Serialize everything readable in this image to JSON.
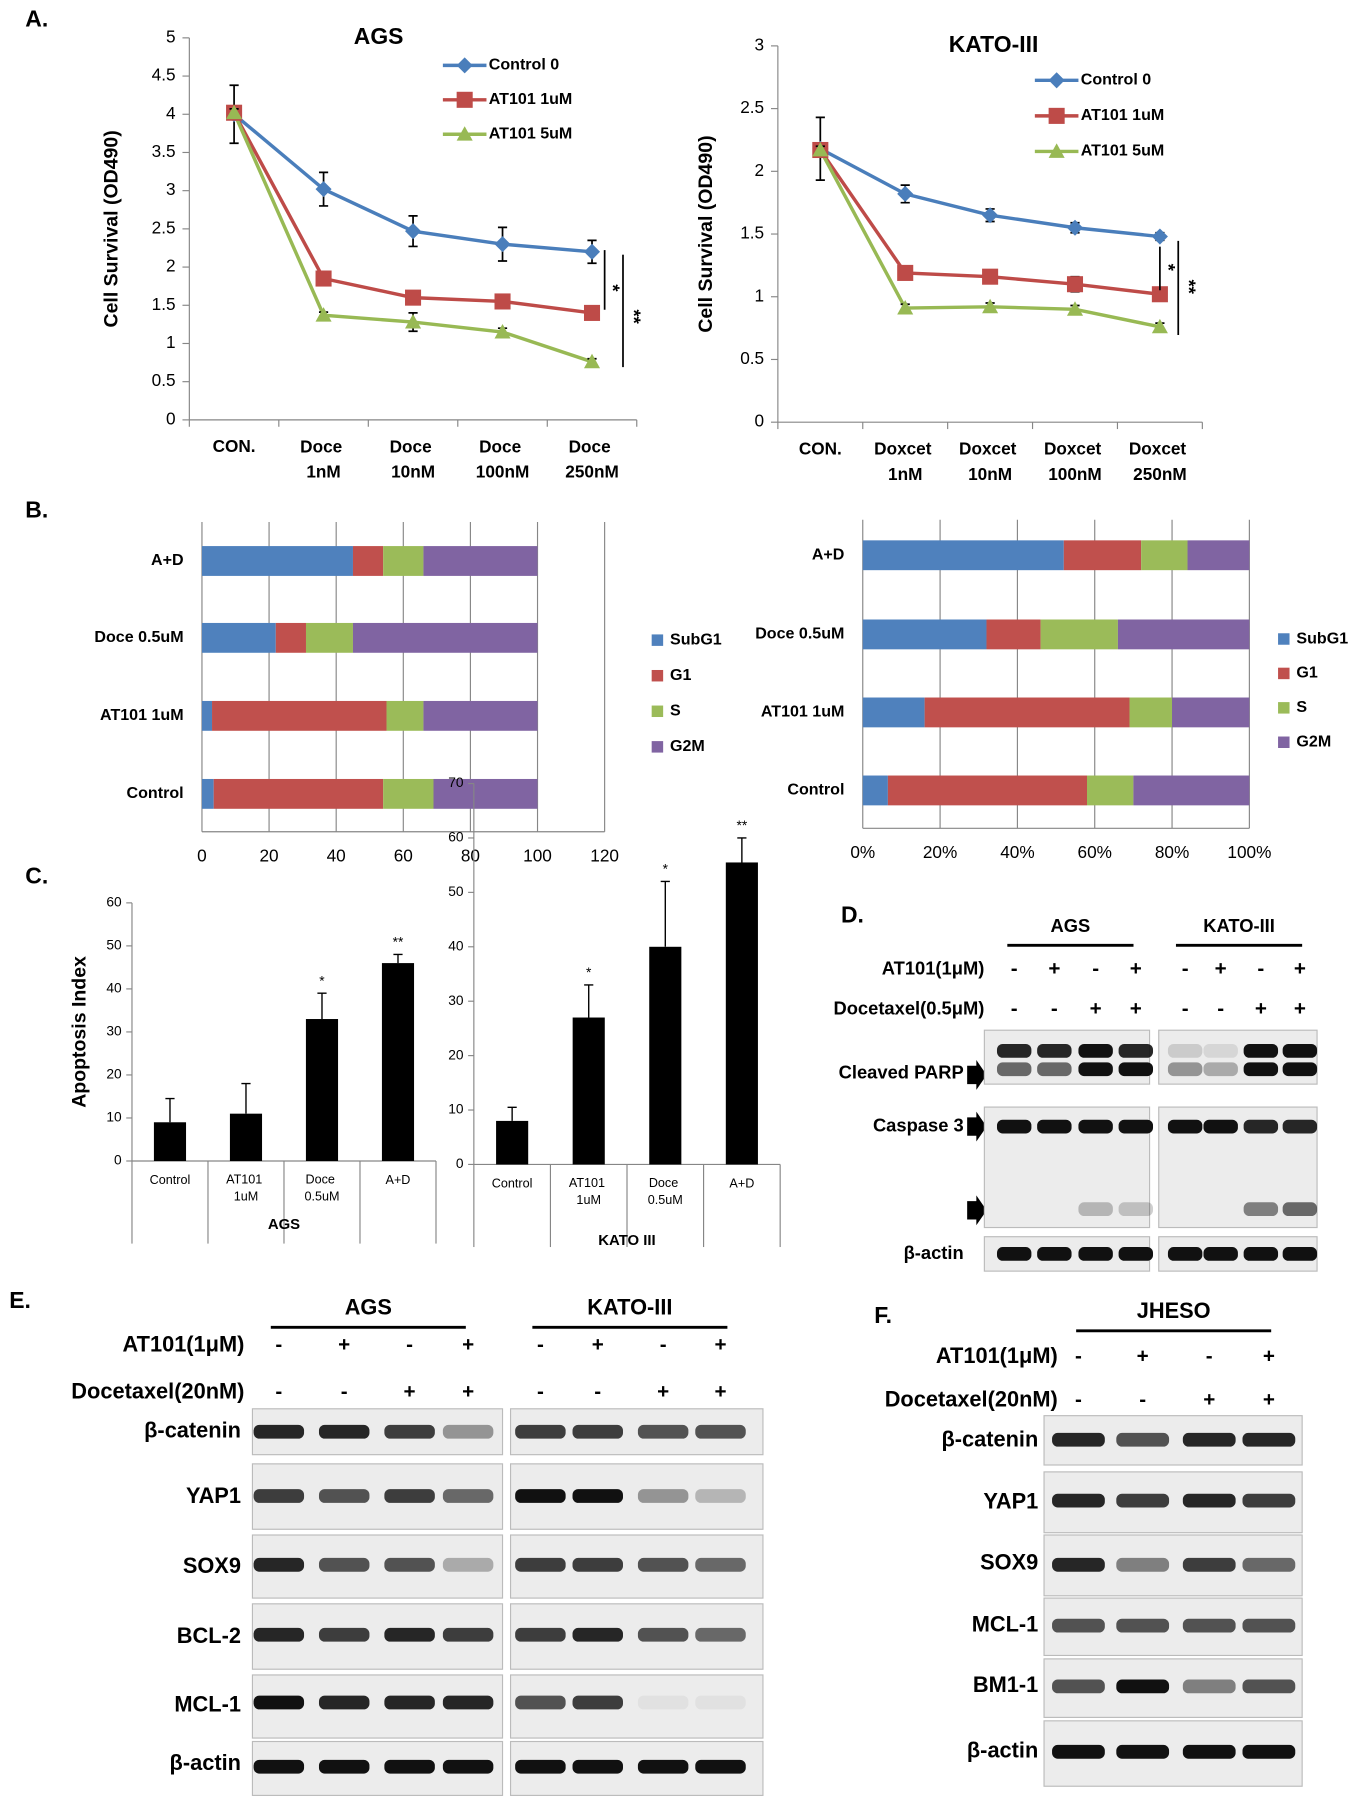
{
  "panel_labels": [
    "A.",
    "B.",
    "C.",
    "D.",
    "E.",
    "F."
  ],
  "chart_data": [
    {
      "type": "line",
      "title": "AGS",
      "y_label": "Cell Survival (OD490)",
      "categories": [
        "CON.",
        "Doce 1nM",
        "Doce 10nM",
        "Doce 100nM",
        "Doce 250nM"
      ],
      "ylim": [
        0,
        5
      ],
      "yticks": [
        0,
        0.5,
        1,
        1.5,
        2,
        2.5,
        3,
        3.5,
        4,
        4.5,
        5
      ],
      "series": [
        {
          "name": "Control 0",
          "color": "#4a7ebb",
          "marker": "diamond",
          "values": [
            4.0,
            3.02,
            2.47,
            2.3,
            2.2
          ],
          "errors": [
            0.38,
            0.22,
            0.2,
            0.22,
            0.15
          ]
        },
        {
          "name": "AT101 1uM",
          "color": "#be4b48",
          "marker": "square",
          "values": [
            4.02,
            1.85,
            1.6,
            1.55,
            1.4
          ],
          "errors": [
            0.05,
            0.05,
            0.06,
            0.05,
            0.05
          ]
        },
        {
          "name": "AT101 5uM",
          "color": "#98b954",
          "marker": "triangle",
          "values": [
            4.02,
            1.37,
            1.28,
            1.15,
            0.76
          ],
          "errors": [
            0.05,
            0.04,
            0.12,
            0.05,
            0.04
          ]
        }
      ],
      "annotations": [
        "*",
        "**"
      ]
    },
    {
      "type": "line",
      "title": "KATO-III",
      "y_label": "Cell Survival (OD490)",
      "categories": [
        "CON.",
        "Doxcet 1nM",
        "Doxcet 10nM",
        "Doxcet 100nM",
        "Doxcet 250nM"
      ],
      "ylim": [
        0,
        3
      ],
      "yticks": [
        0,
        0.5,
        1,
        1.5,
        2,
        2.5,
        3
      ],
      "series": [
        {
          "name": "Control 0",
          "color": "#4a7ebb",
          "marker": "diamond",
          "values": [
            2.18,
            1.82,
            1.65,
            1.55,
            1.48
          ],
          "errors": [
            0.25,
            0.07,
            0.05,
            0.04,
            0.03
          ]
        },
        {
          "name": "AT101 1uM",
          "color": "#be4b48",
          "marker": "square",
          "values": [
            2.17,
            1.19,
            1.16,
            1.1,
            1.02
          ],
          "errors": [
            0.03,
            0.03,
            0.05,
            0.06,
            0.03
          ]
        },
        {
          "name": "AT101 5uM",
          "color": "#98b954",
          "marker": "triangle",
          "values": [
            2.17,
            0.91,
            0.92,
            0.9,
            0.76
          ],
          "errors": [
            0.03,
            0.03,
            0.03,
            0.03,
            0.03
          ]
        }
      ],
      "annotations": [
        "*",
        "**"
      ]
    },
    {
      "type": "bar",
      "orientation": "horizontal",
      "stacked": true,
      "grid": true,
      "categories": [
        "A+D",
        "Doce 0.5uM",
        "AT101 1uM",
        "Control"
      ],
      "xlim": [
        0,
        120
      ],
      "xticks": [
        0,
        20,
        40,
        60,
        80,
        100,
        120
      ],
      "series": [
        {
          "name": "SubG1",
          "color": "#4f81bd",
          "values": [
            45,
            22,
            3,
            3.5
          ]
        },
        {
          "name": "G1",
          "color": "#c0504d",
          "values": [
            9,
            9,
            52,
            50.5
          ]
        },
        {
          "name": "S",
          "color": "#9bbb59",
          "values": [
            12,
            14,
            11,
            15
          ]
        },
        {
          "name": "G2M",
          "color": "#8064a2",
          "values": [
            34,
            55,
            34,
            31
          ]
        }
      ]
    },
    {
      "type": "bar",
      "orientation": "horizontal",
      "stacked": true,
      "grid": true,
      "categories": [
        "A+D",
        "Doce 0.5uM",
        "AT101 1uM",
        "Control"
      ],
      "xlim": [
        0,
        100
      ],
      "xticks": [
        {
          "value": 0,
          "label": "0%"
        },
        {
          "value": 20,
          "label": "20%"
        },
        {
          "value": 40,
          "label": "40%"
        },
        {
          "value": 60,
          "label": "60%"
        },
        {
          "value": 80,
          "label": "80%"
        },
        {
          "value": 100,
          "label": "100%"
        }
      ],
      "series": [
        {
          "name": "SubG1",
          "color": "#4f81bd",
          "values": [
            52,
            32,
            16,
            6.5
          ]
        },
        {
          "name": "G1",
          "color": "#c0504d",
          "values": [
            20,
            14,
            53,
            51.5
          ]
        },
        {
          "name": "S",
          "color": "#9bbb59",
          "values": [
            12,
            20,
            11,
            12
          ]
        },
        {
          "name": "G2M",
          "color": "#8064a2",
          "values": [
            16,
            34,
            20,
            30
          ]
        }
      ]
    },
    {
      "type": "bar",
      "y_label": "Apoptosis Index",
      "x_label": "AGS",
      "color": "#000000",
      "categories": [
        "Control",
        "AT101 1uM",
        "Doce 0.5uM",
        "A+D"
      ],
      "values": [
        9,
        11,
        33,
        46
      ],
      "errors": [
        5.5,
        7,
        6,
        2
      ],
      "ylim": [
        0,
        60
      ],
      "yticks": [
        0,
        10,
        20,
        30,
        40,
        50,
        60
      ],
      "annotations": [
        null,
        null,
        "*",
        "**"
      ]
    },
    {
      "type": "bar",
      "x_label": "KATO III",
      "color": "#000000",
      "categories": [
        "Control",
        "AT101 1uM",
        "Doce 0.5uM",
        "A+D"
      ],
      "values": [
        8,
        27,
        40,
        55.5
      ],
      "errors": [
        2.5,
        6,
        12,
        4.5
      ],
      "ylim": [
        0,
        70
      ],
      "yticks": [
        0,
        10,
        20,
        30,
        40,
        50,
        60,
        70
      ],
      "annotations": [
        null,
        "*",
        "*",
        "**"
      ]
    }
  ],
  "blots": [
    {
      "groups": [
        "AGS",
        "KATO-III"
      ],
      "treatments": [
        {
          "label": "AT101(1μM)",
          "signs": [
            "-",
            "+",
            "-",
            "+",
            "-",
            "+",
            "-",
            "+"
          ]
        },
        {
          "label": "Docetaxel(0.5μM)",
          "signs": [
            "-",
            "-",
            "+",
            "+",
            "-",
            "-",
            "+",
            "+"
          ]
        }
      ],
      "rows": [
        "Cleaved PARP",
        "Caspase 3",
        "β-actin"
      ]
    },
    {
      "groups": [
        "AGS",
        "KATO-III"
      ],
      "treatments": [
        {
          "label": "AT101(1μM)",
          "signs": [
            "-",
            "+",
            "-",
            "+",
            "-",
            "+",
            "-",
            "+"
          ]
        },
        {
          "label": "Docetaxel(20nM)",
          "signs": [
            "-",
            "-",
            "+",
            "+",
            "-",
            "-",
            "+",
            "+"
          ]
        }
      ],
      "rows": [
        "β-catenin",
        "YAP1",
        "SOX9",
        "BCL-2",
        "MCL-1",
        "β-actin"
      ]
    },
    {
      "groups": [
        "JHESO"
      ],
      "treatments": [
        {
          "label": "AT101(1μM)",
          "signs": [
            "-",
            "+",
            "-",
            "+"
          ]
        },
        {
          "label": "Docetaxel(20nM)",
          "signs": [
            "-",
            "-",
            "+",
            "+"
          ]
        }
      ],
      "rows": [
        "β-catenin",
        "YAP1",
        "SOX9",
        "MCL-1",
        "BM1-1",
        "β-actin"
      ]
    }
  ]
}
